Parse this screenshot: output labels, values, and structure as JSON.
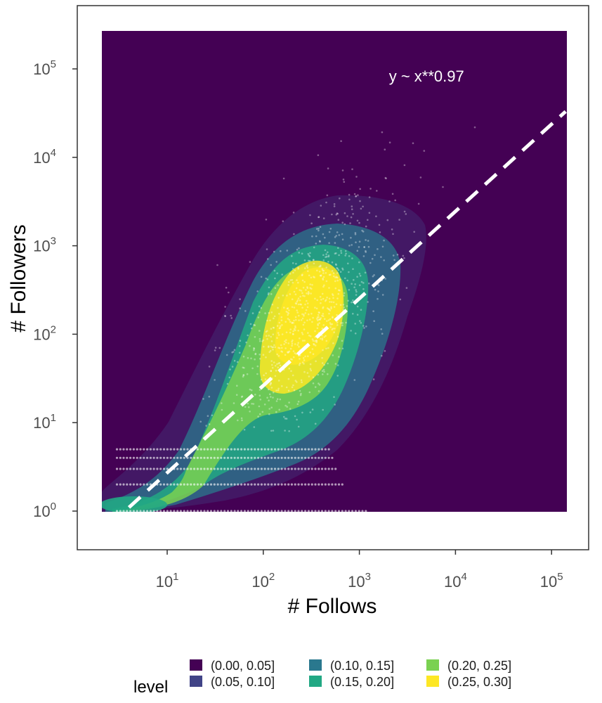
{
  "chart_data": {
    "type": "scatter",
    "title": "",
    "xlabel": "# Follows",
    "ylabel": "# Followers",
    "xscale": "log",
    "yscale": "log",
    "xlim": [
      2,
      140000
    ],
    "ylim": [
      0.38,
      600000
    ],
    "x_ticks": [
      {
        "base": "10",
        "exp": "1"
      },
      {
        "base": "10",
        "exp": "2"
      },
      {
        "base": "10",
        "exp": "3"
      },
      {
        "base": "10",
        "exp": "4"
      },
      {
        "base": "10",
        "exp": "5"
      }
    ],
    "y_ticks": [
      {
        "base": "10",
        "exp": "0"
      },
      {
        "base": "10",
        "exp": "1"
      },
      {
        "base": "10",
        "exp": "2"
      },
      {
        "base": "10",
        "exp": "3"
      },
      {
        "base": "10",
        "exp": "4"
      },
      {
        "base": "10",
        "exp": "5"
      }
    ],
    "grid": false,
    "background_color": "#440154",
    "fit_line": {
      "exponent": 0.97,
      "from": [
        4,
        1.1
      ],
      "to": [
        140000,
        33000
      ],
      "style": "dashed",
      "color": "#ffffff"
    },
    "annotation": {
      "text": "y ~ x**0.97",
      "x": 5000,
      "y": 72000
    },
    "density_levels": [
      {
        "label": "(0.00, 0.05]",
        "color": "#440154"
      },
      {
        "label": "(0.05, 0.10]",
        "color": "#414487"
      },
      {
        "label": "(0.10, 0.15]",
        "color": "#2a788e"
      },
      {
        "label": "(0.15, 0.20]",
        "color": "#22a884"
      },
      {
        "label": "(0.20, 0.25]",
        "color": "#7ad151"
      },
      {
        "label": "(0.25, 0.30]",
        "color": "#fde725"
      }
    ],
    "point_color": "#ffffff",
    "legend": {
      "title": "level",
      "placement": "bottom"
    }
  }
}
